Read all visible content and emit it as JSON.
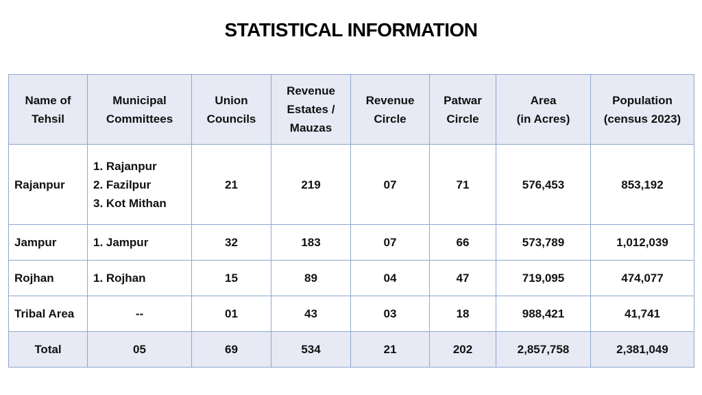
{
  "page": {
    "title": "STATISTICAL INFORMATION"
  },
  "table": {
    "headers": [
      [
        "Name of",
        "Tehsil"
      ],
      [
        "Municipal",
        "Committees"
      ],
      [
        "Union",
        "Councils"
      ],
      [
        "Revenue",
        "Estates /",
        "Mauzas"
      ],
      [
        "Revenue",
        "Circle"
      ],
      [
        "Patwar",
        "Circle"
      ],
      [
        "Area",
        "(in Acres)"
      ],
      [
        "Population",
        "(census 2023)"
      ]
    ],
    "rows": [
      {
        "tehsil": "Rajanpur",
        "committees": [
          "1. Rajanpur",
          "2. Fazilpur",
          "3. Kot Mithan"
        ],
        "union_councils": "21",
        "revenue_estates": "219",
        "revenue_circle": "07",
        "patwar_circle": "71",
        "area": "576,453",
        "population": "853,192"
      },
      {
        "tehsil": "Jampur",
        "committees": [
          "1. Jampur"
        ],
        "union_councils": "32",
        "revenue_estates": "183",
        "revenue_circle": "07",
        "patwar_circle": "66",
        "area": "573,789",
        "population": "1,012,039"
      },
      {
        "tehsil": "Rojhan",
        "committees": [
          "1. Rojhan"
        ],
        "union_councils": "15",
        "revenue_estates": "89",
        "revenue_circle": "04",
        "patwar_circle": "47",
        "area": "719,095",
        "population": "474,077"
      },
      {
        "tehsil": "Tribal Area",
        "committees": [
          "--"
        ],
        "union_councils": "01",
        "revenue_estates": "43",
        "revenue_circle": "03",
        "patwar_circle": "18",
        "area": "988,421",
        "population": "41,741"
      }
    ],
    "total": {
      "label": "Total",
      "committees": "05",
      "union_councils": "69",
      "revenue_estates": "534",
      "revenue_circle": "21",
      "patwar_circle": "202",
      "area": "2,857,758",
      "population": "2,381,049"
    }
  }
}
